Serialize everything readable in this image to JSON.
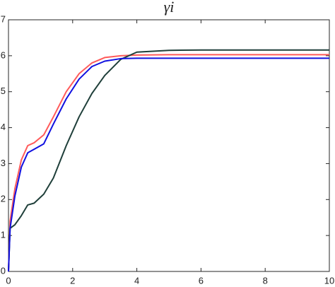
{
  "chart_data": {
    "type": "line",
    "title": "γi",
    "x": [
      0,
      0.05,
      0.2,
      0.4,
      0.6,
      0.8,
      1.1,
      1.4,
      1.8,
      2.2,
      2.6,
      3.0,
      3.5,
      4,
      5,
      6,
      8,
      10
    ],
    "series": [
      {
        "color": "#ff5a5a",
        "values": [
          0,
          1.4,
          2.3,
          3.1,
          3.5,
          3.58,
          3.8,
          4.3,
          5.0,
          5.5,
          5.8,
          5.95,
          6.0,
          6.02,
          6.03,
          6.03,
          6.03,
          6.03
        ]
      },
      {
        "color": "#1f3f3a",
        "values": [
          0,
          1.2,
          1.3,
          1.55,
          1.85,
          1.9,
          2.15,
          2.6,
          3.5,
          4.3,
          4.95,
          5.45,
          5.9,
          6.1,
          6.15,
          6.16,
          6.16,
          6.16
        ]
      },
      {
        "color": "#1010e0",
        "values": [
          0,
          1.2,
          2.1,
          2.9,
          3.3,
          3.4,
          3.55,
          4.1,
          4.8,
          5.35,
          5.7,
          5.85,
          5.92,
          5.93,
          5.93,
          5.93,
          5.93,
          5.93
        ]
      }
    ],
    "xlim": [
      0,
      10
    ],
    "xticks": [
      0,
      2,
      4,
      6,
      8,
      10
    ],
    "ylim": [
      0,
      7
    ],
    "yticks": [
      0,
      1,
      2,
      3,
      4,
      5,
      6,
      7
    ]
  }
}
